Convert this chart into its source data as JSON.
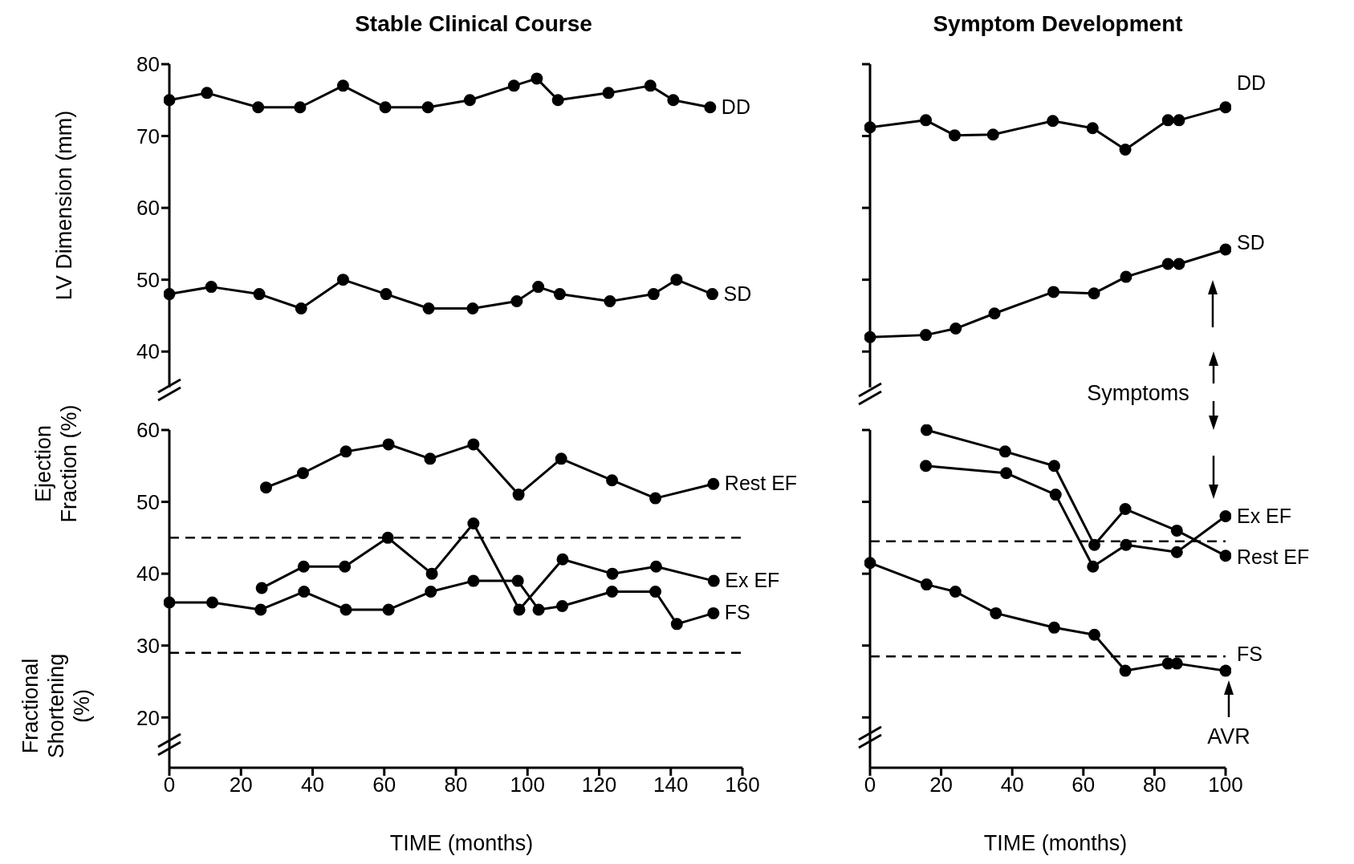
{
  "chart_data": [
    {
      "type": "line",
      "title": "Stable Clinical Course",
      "ylabel": "LV Dimension (mm)",
      "xlim": [
        0,
        160
      ],
      "ylim": [
        35,
        80
      ],
      "yticks": [
        40,
        50,
        60,
        70,
        80
      ],
      "tick_labels": "y",
      "marker": "circle",
      "line_style": "solid",
      "series": [
        {
          "name": "DD",
          "color": "#000000",
          "x": [
            0,
            10.5,
            24.8,
            36.5,
            48.5,
            60.3,
            72.2,
            83.9,
            96.2,
            102.6,
            108.5,
            122.6,
            134.3,
            140.7,
            151
          ],
          "values": [
            75,
            76,
            74,
            74,
            77,
            74,
            74,
            75,
            77,
            78,
            75,
            76,
            77,
            75,
            74
          ]
        },
        {
          "name": "SD",
          "color": "#000000",
          "x": [
            0,
            11.7,
            25.1,
            36.8,
            48.5,
            60.5,
            72.4,
            84.7,
            97,
            103,
            109,
            123,
            135.2,
            141.6,
            151.6
          ],
          "values": [
            48,
            49,
            48,
            46,
            50,
            48,
            46,
            46,
            47,
            49,
            48,
            47,
            48,
            50,
            48
          ]
        }
      ]
    },
    {
      "type": "line",
      "ylabel": "Ejection Fraction (%)",
      "xlabel": "TIME (months)",
      "annotations": [
        "Fractional Shortening (%)"
      ],
      "xlim": [
        0,
        160
      ],
      "ylim": [
        13,
        60
      ],
      "xticks": [
        0,
        20,
        40,
        60,
        80,
        100,
        120,
        140,
        160
      ],
      "yticks": [
        20,
        30,
        40,
        50,
        60
      ],
      "marker": "circle",
      "line_style": "solid",
      "ref_lines": [
        {
          "axis": "y",
          "value": 45,
          "color": "#000000",
          "line_style": "dashed"
        },
        {
          "axis": "y",
          "value": 29,
          "color": "#000000",
          "line_style": "dashed"
        }
      ],
      "series": [
        {
          "name": "Rest EF",
          "color": "#000000",
          "x": [
            27,
            37.3,
            49.3,
            61.2,
            72.8,
            84.9,
            97.5,
            109.4,
            123.6,
            135.7,
            151.9
          ],
          "values": [
            52,
            54,
            57,
            58,
            56,
            58,
            51,
            56,
            53,
            50.5,
            52.5
          ]
        },
        {
          "name": "Ex EF",
          "color": "#000000",
          "x": [
            25.8,
            37.5,
            49,
            61,
            73.3,
            84.9,
            97.7,
            109.8,
            123.7,
            135.9,
            152
          ],
          "values": [
            38,
            41,
            41,
            45,
            40,
            47,
            35,
            42,
            40,
            41,
            39
          ]
        },
        {
          "name": "FS",
          "color": "#000000",
          "x": [
            0,
            12,
            25.5,
            37.6,
            49.3,
            61.2,
            73,
            84.9,
            97.3,
            103.1,
            109.7,
            123.6,
            135.7,
            141.7,
            151.9
          ],
          "values": [
            36,
            36,
            35,
            37.5,
            35,
            35,
            37.5,
            39,
            39,
            35,
            35.5,
            37.5,
            37.5,
            33,
            34.5
          ]
        }
      ]
    },
    {
      "type": "line",
      "title": "Symptom Development",
      "annotations": [
        "Symptoms"
      ],
      "xlim": [
        0,
        100
      ],
      "ylim": [
        35,
        80
      ],
      "yticks": [
        {
          "value": 40,
          "label": null
        },
        {
          "value": 50,
          "label": null
        },
        {
          "value": 60,
          "label": null
        },
        {
          "value": 70,
          "label": null
        },
        {
          "value": 80,
          "label": null
        }
      ],
      "tick_labels": false,
      "marker": "circle",
      "line_style": "solid",
      "series": [
        {
          "name": "DD",
          "color": "#000000",
          "x": [
            0,
            15.7,
            23.8,
            34.6,
            51.4,
            62.6,
            71.8,
            83.8,
            86.9,
            100
          ],
          "values": [
            71.2,
            72.2,
            70.1,
            70.2,
            72.1,
            71.1,
            68.1,
            72.2,
            72.2,
            74
          ]
        },
        {
          "name": "SD",
          "color": "#000000",
          "x": [
            0,
            15.7,
            24.1,
            35,
            51.6,
            63,
            72,
            83.8,
            86.9,
            100
          ],
          "values": [
            42,
            42.3,
            43.2,
            45.3,
            48.3,
            48.1,
            50.4,
            52.2,
            52.2,
            54.2
          ]
        }
      ]
    },
    {
      "type": "line",
      "xlabel": "TIME (months)",
      "annotations": [
        "AVR"
      ],
      "xlim": [
        0,
        100
      ],
      "ylim": [
        13,
        60
      ],
      "xticks": [
        0,
        20,
        40,
        60,
        80,
        100
      ],
      "yticks": [
        {
          "value": 20,
          "label": null
        },
        {
          "value": 30,
          "label": null
        },
        {
          "value": 40,
          "label": null
        },
        {
          "value": 50,
          "label": null
        },
        {
          "value": 60,
          "label": null
        }
      ],
      "tick_labels": "x",
      "marker": "circle",
      "line_style": "solid",
      "ref_lines": [
        {
          "axis": "y",
          "value": 44.5,
          "color": "#000000",
          "line_style": "dashed"
        },
        {
          "axis": "y",
          "value": 28.5,
          "color": "#000000",
          "line_style": "dashed"
        }
      ],
      "series": [
        {
          "name": "Rest EF",
          "color": "#000000",
          "x": [
            15.9,
            38,
            51.8,
            63.1,
            71.8,
            86.3,
            100
          ],
          "values": [
            60,
            57,
            55,
            44,
            49,
            46,
            42.5
          ]
        },
        {
          "name": "Ex EF",
          "color": "#000000",
          "x": [
            15.7,
            38.3,
            52.2,
            62.7,
            72,
            86.3,
            100
          ],
          "values": [
            55,
            54,
            51,
            41,
            44,
            43,
            48
          ]
        },
        {
          "name": "FS",
          "color": "#000000",
          "x": [
            0,
            15.9,
            24,
            35.4,
            51.8,
            63.1,
            71.8,
            83.8,
            86.3,
            100
          ],
          "values": [
            41.5,
            38.5,
            37.5,
            34.5,
            32.5,
            31.5,
            26.5,
            27.5,
            27.5,
            26.5
          ]
        }
      ]
    }
  ]
}
